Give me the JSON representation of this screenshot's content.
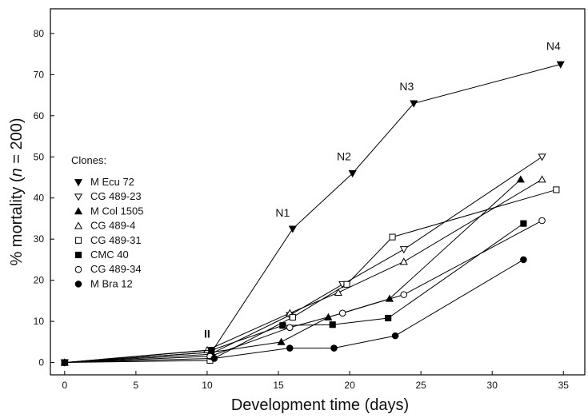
{
  "chart_data": {
    "type": "line",
    "title": "",
    "xlabel": "Development time (days)",
    "ylabel_prefix": "% mortality (",
    "ylabel_n": "n",
    "ylabel_suffix": " = 200)",
    "xlim": [
      -1,
      36.5
    ],
    "ylim": [
      -3,
      86
    ],
    "xticks": [
      0,
      5,
      10,
      15,
      20,
      25,
      30,
      35
    ],
    "yticks": [
      0,
      10,
      20,
      30,
      40,
      50,
      60,
      70,
      80
    ],
    "grid": false,
    "legend_title": "Clones:",
    "legend_position": "left",
    "series": [
      {
        "name": "M Ecu 72",
        "marker": "tri-down-filled",
        "x": [
          0,
          10.3,
          16,
          20.2,
          24.5,
          34.8
        ],
        "y": [
          0,
          2.5,
          32.5,
          46,
          63,
          72.5
        ]
      },
      {
        "name": "CG 489-23",
        "marker": "tri-down-open",
        "x": [
          0,
          10.2,
          15.8,
          19.5,
          23.8,
          33.5
        ],
        "y": [
          0,
          2,
          11.5,
          19,
          27.5,
          50
        ]
      },
      {
        "name": "M Col 1505",
        "marker": "tri-up-filled",
        "x": [
          0,
          10.3,
          15.2,
          18.5,
          22.8,
          32
        ],
        "y": [
          0,
          2.5,
          5,
          11,
          15.5,
          44.5
        ]
      },
      {
        "name": "CG 489-4",
        "marker": "tri-up-open",
        "x": [
          0,
          10,
          15.8,
          19.2,
          23.8,
          33.5
        ],
        "y": [
          0,
          3,
          12,
          17,
          24.5,
          44.5
        ]
      },
      {
        "name": "CG 489-31",
        "marker": "square-open",
        "x": [
          0,
          10.2,
          16,
          19.8,
          23,
          34.5
        ],
        "y": [
          0,
          0.5,
          11,
          19,
          30.5,
          42
        ]
      },
      {
        "name": "CMC 40",
        "marker": "square-filled",
        "x": [
          0,
          10.3,
          15.3,
          18.8,
          22.7,
          32.2
        ],
        "y": [
          0,
          3,
          9,
          9.2,
          10.8,
          33.8
        ]
      },
      {
        "name": "CG 489-34",
        "marker": "circle-open",
        "x": [
          0,
          10.2,
          15.8,
          19.5,
          23.8,
          33.5
        ],
        "y": [
          0,
          1.5,
          8.5,
          12,
          16.5,
          34.5
        ]
      },
      {
        "name": "M Bra 12",
        "marker": "circle-filled",
        "x": [
          0,
          10.5,
          15.8,
          18.9,
          23.2,
          32.2
        ],
        "y": [
          0,
          1,
          3.5,
          3.5,
          6.5,
          25
        ]
      }
    ],
    "annotations": [
      {
        "text": "N1",
        "x": 15.3,
        "y": 35.5
      },
      {
        "text": "N2",
        "x": 19.6,
        "y": 49.2
      },
      {
        "text": "N3",
        "x": 24.0,
        "y": 66.2
      },
      {
        "text": "N4",
        "x": 34.3,
        "y": 76.0
      },
      {
        "text": "II",
        "x": 10.0,
        "y": 6.0
      }
    ]
  }
}
